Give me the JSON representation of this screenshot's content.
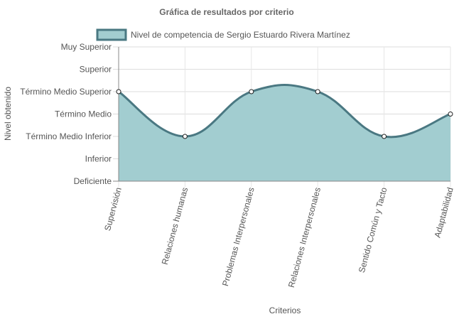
{
  "chart_data": {
    "type": "area",
    "title": "Gráfica de resultados por criterio",
    "xlabel": "Criterios",
    "ylabel": "Nivel obtenido",
    "categories": [
      "Supervisión",
      "Relaciones humanas",
      "Problemas Interpersonales",
      "Relaciones Interpersonales",
      "Sentido Común y Tacto",
      "Adaptabilidad"
    ],
    "y_levels": [
      "Deficiente",
      "Inferior",
      "Término Medio Inferior",
      "Término Medio",
      "Término Medio Superior",
      "Superior",
      "Muy Superior"
    ],
    "ylim": [
      0,
      6
    ],
    "grid": true,
    "legend_position": "top",
    "series": [
      {
        "name": "Nivel de competencia de Sergio Estuardo Rivera Martínez",
        "values": [
          4,
          2,
          4,
          4,
          2,
          3
        ],
        "fill_color": "#a2cdd0",
        "line_color": "#4a7882"
      }
    ]
  }
}
